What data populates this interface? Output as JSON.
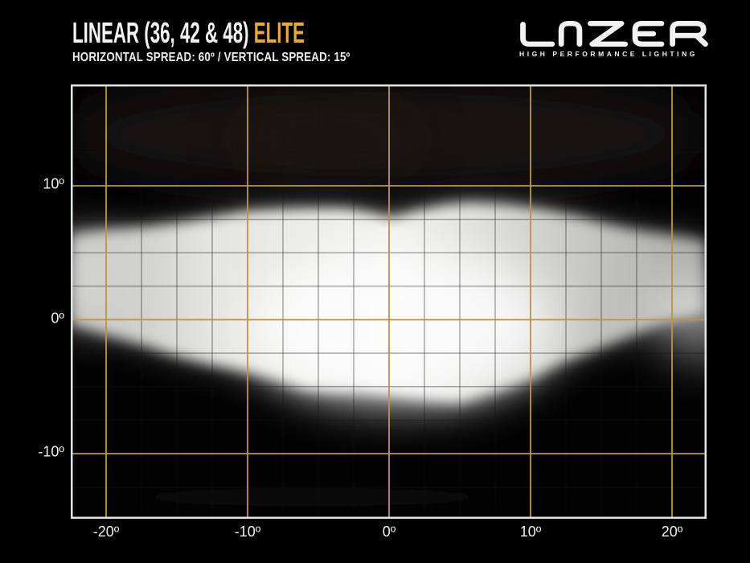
{
  "header": {
    "title_main": "LINEAR (36, 42 & 48) ",
    "title_accent": "ELITE",
    "subtitle": "HORIZONTAL SPREAD: 60º / VERTICAL SPREAD: 15º",
    "accent_color": "#E9A83D"
  },
  "logo": {
    "name": "LAZER",
    "tagline": "HIGH PERFORMANCE LIGHTING"
  },
  "chart_data": {
    "type": "heatmap",
    "title": "Photometric beam pattern, Linear (36, 42 & 48) Elite",
    "horizontal_spread_deg": 60,
    "vertical_spread_deg": 15,
    "x_axis": {
      "unit": "degrees",
      "range": [
        -22.5,
        22.5
      ],
      "tick_values": [
        -20,
        -10,
        0,
        10,
        20
      ],
      "tick_labels": [
        "-20º",
        "-10º",
        "0º",
        "10º",
        "20º"
      ],
      "minor_step_deg": 2.5
    },
    "y_axis": {
      "unit": "degrees",
      "range": [
        -15,
        17.6
      ],
      "tick_values": [
        10,
        0,
        -10
      ],
      "tick_labels": [
        "10º",
        "0º",
        "-10º"
      ],
      "minor_step_deg": 2.5
    },
    "grid": {
      "major_color": "#BD9840",
      "minor_color": "rgba(18,18,18,0.42)",
      "border_color": "#DCE6E6",
      "major_every_deg": 10,
      "grid_on": true
    },
    "beam": {
      "description": "white beam intensity footprint on black background",
      "outline_top_deg": [
        [
          -22.5,
          6.4
        ],
        [
          -20,
          6.7
        ],
        [
          -17.3,
          6.9
        ],
        [
          -14.5,
          7.3
        ],
        [
          -12.2,
          7.7
        ],
        [
          -10,
          8.1
        ],
        [
          -7.7,
          8.25
        ],
        [
          -5.5,
          8.3
        ],
        [
          -3.2,
          8.3
        ],
        [
          -1.5,
          8.0
        ],
        [
          0.2,
          7.6
        ],
        [
          1.9,
          8.1
        ],
        [
          4.2,
          8.6
        ],
        [
          5.9,
          8.75
        ],
        [
          8.2,
          8.6
        ],
        [
          11,
          8.2
        ],
        [
          13.3,
          7.7
        ],
        [
          15.5,
          7.1
        ],
        [
          17.8,
          6.6
        ],
        [
          19.8,
          6.3
        ],
        [
          22.3,
          5.9
        ]
      ],
      "outline_bottom_deg": [
        [
          -22.5,
          -0.3
        ],
        [
          -20,
          -1.1
        ],
        [
          -17.3,
          -1.9
        ],
        [
          -15,
          -2.7
        ],
        [
          -12.8,
          -3.3
        ],
        [
          -10,
          -3.9
        ],
        [
          -7.7,
          -4.6
        ],
        [
          -6,
          -5.2
        ],
        [
          -4,
          -5.4
        ],
        [
          -2,
          -5.4
        ],
        [
          0,
          -5.6
        ],
        [
          2.1,
          -5.9
        ],
        [
          4.9,
          -6.2
        ],
        [
          7.7,
          -5.3
        ],
        [
          10,
          -4.4
        ],
        [
          12.1,
          -3.2
        ],
        [
          14.4,
          -2.3
        ],
        [
          16.1,
          -1.6
        ],
        [
          18.2,
          -0.7
        ],
        [
          19.8,
          -0.1
        ],
        [
          22.3,
          0.5
        ]
      ],
      "hotspots": [
        {
          "x_deg": 0.8,
          "y_deg": -0.4,
          "rx_deg": 10.8,
          "ry_deg": 5.8,
          "opacity": 0.8
        },
        {
          "x_deg": 22.0,
          "y_deg": 0.3,
          "rx_deg": 3.4,
          "ry_deg": 3.0,
          "opacity": 0.5
        },
        {
          "x_deg": -22.0,
          "y_deg": 3.0,
          "rx_deg": 2.9,
          "ry_deg": 3.4,
          "opacity": 0.32
        }
      ],
      "core_color": "#F1F1EF",
      "edge_color": "#A8A8A6"
    },
    "legend": "none"
  }
}
